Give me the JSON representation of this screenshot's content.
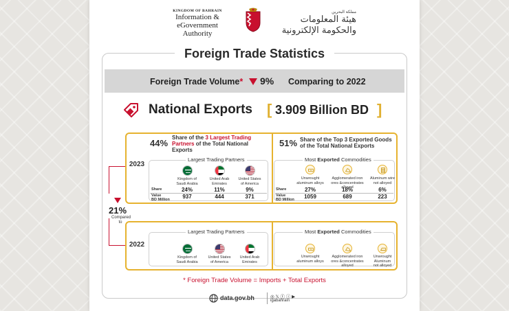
{
  "header": {
    "kingdom": "KINGDOM OF BAHRAIN",
    "authority_line1": "Information & eGovernment",
    "authority_line2": "Authority",
    "arabic_small": "مملكة البحرين",
    "arabic_big": "هيئة المعلومات والحكومة الإلكترونية"
  },
  "title": "Foreign Trade Statistics",
  "volume": {
    "label": "Foreign Trade Volume",
    "star": "*",
    "change": "9%",
    "comparison": "Comparing to 2022"
  },
  "exports": {
    "title": "National Exports",
    "value": "3.909 Billion BD",
    "bracket_open": "[",
    "bracket_close": "]"
  },
  "year_2023": {
    "year": "2023",
    "partners_pct": "44%",
    "partners_text_pre": "Share of the ",
    "partners_text_bold": "3 Largest Trading Partners",
    "partners_text_post": " of the Total National Exports",
    "goods_pct": "51%",
    "goods_text": "Share of the Top 3 Exported Goods of the Total National Exports",
    "partners_title": "Largest Trading Partners",
    "commodities_title_pre": "Most ",
    "commodities_title_bold": "Exported",
    "commodities_title_post": " Commodities",
    "share_label": "Share",
    "value_label1": "Value",
    "value_label2": "BD Million",
    "partners": [
      {
        "name1": "Kingdom of",
        "name2": "Saudi Arabia",
        "share": "24%",
        "value": "937",
        "flag": "saudi-flag"
      },
      {
        "name1": "United Arab",
        "name2": "Emirates",
        "share": "11%",
        "value": "444",
        "flag": "uae-flag"
      },
      {
        "name1": "United States",
        "name2": "of America",
        "share": "9%",
        "value": "371",
        "flag": "usa-flag"
      }
    ],
    "commodities": [
      {
        "name1": "Unwrought",
        "name2": "aluminum alloys",
        "share": "27%",
        "value": "1059",
        "icon": "aluminum-alloy-icon"
      },
      {
        "name1": "Agglomerated iron",
        "name2": "ores &concentrates",
        "name3": "alloyed",
        "share": "18%",
        "value": "689",
        "icon": "iron-ore-icon"
      },
      {
        "name1": "Aluminum wire",
        "name2": "not alloyed",
        "share": "6%",
        "value": "223",
        "icon": "aluminum-wire-icon"
      }
    ]
  },
  "comparison": {
    "pct": "21%",
    "label1": "Compared",
    "label2": "to"
  },
  "year_2022": {
    "year": "2022",
    "partners_title": "Largest Trading Partners",
    "commodities_title_pre": "Most ",
    "commodities_title_bold": "Exported",
    "commodities_title_post": " Commodities",
    "partners": [
      {
        "name1": "Kingdom of",
        "name2": "Saudi Arabia",
        "flag": "saudi-flag"
      },
      {
        "name1": "United States",
        "name2": "of America",
        "flag": "usa-flag"
      },
      {
        "name1": "United Arab",
        "name2": "Emirates",
        "flag": "uae-flag"
      }
    ],
    "commodities": [
      {
        "name1": "Unwrought",
        "name2": "aluminum alloys",
        "icon": "aluminum-alloy-icon"
      },
      {
        "name1": "Agglomerated iron",
        "name2": "ores &concentrates",
        "name3": "alloyed",
        "icon": "iron-ore-icon"
      },
      {
        "name1": "Unwrought",
        "name2": "Aluminum",
        "name3": "not alloyed",
        "icon": "aluminum-ingot-icon"
      }
    ]
  },
  "footnote": "*  Foreign Trade Volume = Imports + Total Exports",
  "footer": {
    "website": "data.gov.bh",
    "handle": "igabahrain"
  },
  "colors": {
    "accent_red": "#c8102e",
    "accent_gold": "#e6b22e",
    "bar_gray": "#d6d6d6"
  }
}
